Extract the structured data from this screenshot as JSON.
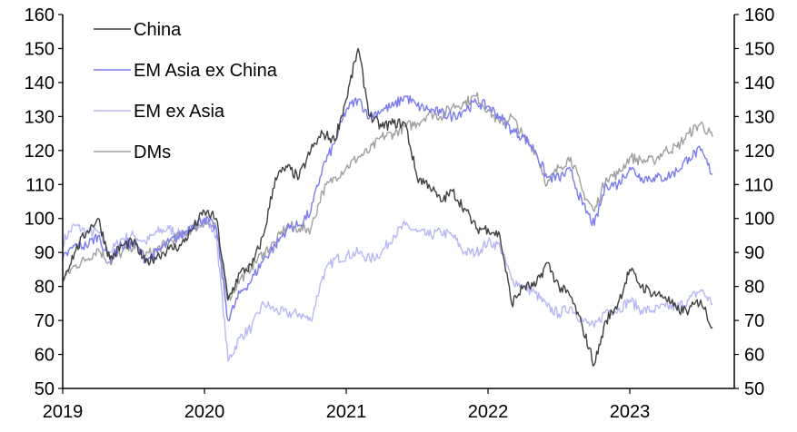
{
  "chart_data": {
    "type": "line",
    "title": "",
    "xlabel": "",
    "ylabel": "",
    "ylim": [
      50,
      160
    ],
    "yticks": [
      "50",
      "60",
      "70",
      "80",
      "90",
      "100",
      "110",
      "120",
      "130",
      "140",
      "150",
      "160"
    ],
    "xticks": [
      "2019",
      "2020",
      "2021",
      "2022",
      "2023"
    ],
    "grid": false,
    "legend_placement": "top-left",
    "x": [
      "2019-01",
      "2019-02",
      "2019-03",
      "2019-04",
      "2019-05",
      "2019-06",
      "2019-07",
      "2019-08",
      "2019-09",
      "2019-10",
      "2019-11",
      "2019-12",
      "2020-01",
      "2020-02",
      "2020-03",
      "2020-04",
      "2020-05",
      "2020-06",
      "2020-07",
      "2020-08",
      "2020-09",
      "2020-10",
      "2020-11",
      "2020-12",
      "2021-01",
      "2021-02",
      "2021-03",
      "2021-04",
      "2021-05",
      "2021-06",
      "2021-07",
      "2021-08",
      "2021-09",
      "2021-10",
      "2021-11",
      "2021-12",
      "2022-01",
      "2022-02",
      "2022-03",
      "2022-04",
      "2022-05",
      "2022-06",
      "2022-07",
      "2022-08",
      "2022-09",
      "2022-10",
      "2022-11",
      "2022-12",
      "2023-01",
      "2023-02",
      "2023-03",
      "2023-04",
      "2023-05",
      "2023-06",
      "2023-07",
      "2023-08"
    ],
    "series": [
      {
        "name": "China",
        "color": "#404040",
        "values": [
          82,
          90,
          96,
          100,
          88,
          92,
          93,
          87,
          89,
          91,
          92,
          97,
          102,
          100,
          76,
          84,
          86,
          95,
          112,
          115,
          112,
          120,
          125,
          123,
          135,
          150,
          130,
          127,
          128,
          128,
          112,
          110,
          105,
          108,
          103,
          97,
          97,
          95,
          75,
          80,
          80,
          87,
          80,
          77,
          68,
          57,
          70,
          75,
          85,
          80,
          78,
          77,
          73,
          73,
          76,
          68
        ]
      },
      {
        "name": "EM Asia ex China",
        "color": "#7b7bf0",
        "values": [
          88,
          92,
          92,
          95,
          88,
          92,
          93,
          88,
          90,
          93,
          95,
          98,
          100,
          97,
          70,
          78,
          82,
          88,
          92,
          97,
          98,
          102,
          115,
          122,
          132,
          135,
          130,
          132,
          133,
          136,
          133,
          132,
          131,
          130,
          132,
          134,
          133,
          130,
          126,
          124,
          120,
          112,
          112,
          114,
          104,
          98,
          110,
          110,
          115,
          112,
          112,
          112,
          114,
          118,
          120,
          113
        ]
      },
      {
        "name": "EM ex Asia",
        "color": "#b8b8f5",
        "values": [
          93,
          98,
          96,
          96,
          90,
          94,
          95,
          93,
          96,
          97,
          95,
          97,
          100,
          95,
          58,
          65,
          68,
          75,
          73,
          72,
          72,
          70,
          83,
          88,
          89,
          90,
          88,
          90,
          95,
          98,
          96,
          95,
          96,
          95,
          90,
          90,
          93,
          92,
          82,
          80,
          78,
          74,
          72,
          74,
          70,
          68,
          73,
          73,
          76,
          73,
          73,
          74,
          74,
          76,
          79,
          75
        ]
      },
      {
        "name": "DMs",
        "color": "#a0a0a0",
        "values": [
          82,
          86,
          88,
          91,
          87,
          90,
          92,
          89,
          91,
          93,
          95,
          97,
          99,
          97,
          76,
          82,
          86,
          90,
          93,
          98,
          97,
          97,
          108,
          112,
          115,
          118,
          120,
          124,
          125,
          127,
          128,
          131,
          130,
          133,
          134,
          136,
          132,
          128,
          130,
          124,
          120,
          110,
          115,
          118,
          108,
          102,
          112,
          113,
          118,
          117,
          117,
          120,
          121,
          125,
          128,
          124
        ]
      }
    ]
  }
}
